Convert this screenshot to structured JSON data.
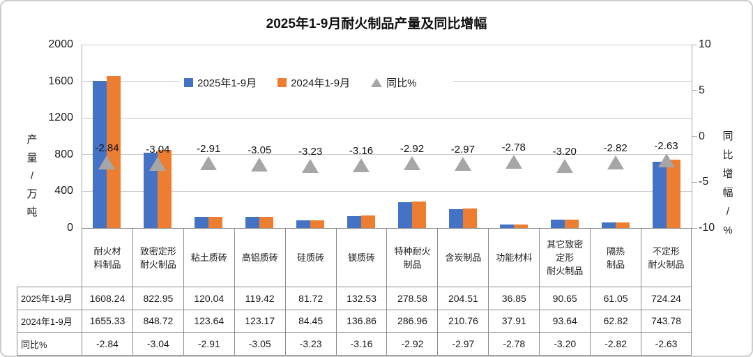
{
  "chart_data": {
    "type": "bar",
    "title": "2025年1-9月耐火制品产量及同比增幅",
    "categories": [
      "耐火材料制品",
      "致密定形耐火制品",
      "粘土质砖",
      "高铝质砖",
      "硅质砖",
      "镁质砖",
      "特种耐火制品",
      "含炭制品",
      "功能材料",
      "其它致密定形耐火制品",
      "隔热制品",
      "不定形耐火制品"
    ],
    "category_labels_wrapped": [
      "耐火材\n料制品",
      "致密定形\n耐火制品",
      "粘土质砖",
      "高铝质砖",
      "硅质砖",
      "镁质砖",
      "特种耐火\n制品",
      "含炭制品",
      "功能材料",
      "其它致密\n定形\n耐火制品",
      "隔热\n制品",
      "不定形\n耐火制品"
    ],
    "series": [
      {
        "name": "2025年1-9月",
        "color": "#4472C4",
        "values": [
          "1608.24",
          "822.95",
          "120.04",
          "119.42",
          "81.72",
          "132.53",
          "278.58",
          "204.51",
          "36.85",
          "90.65",
          "61.05",
          "724.24"
        ]
      },
      {
        "name": "2024年1-9月",
        "color": "#ED7D31",
        "values": [
          "1655.33",
          "848.72",
          "123.64",
          "123.17",
          "84.45",
          "136.86",
          "286.96",
          "210.76",
          "37.91",
          "93.64",
          "62.82",
          "743.78"
        ]
      }
    ],
    "marker_series": {
      "name": "同比%",
      "marker": "triangle",
      "color": "#A6A6A6",
      "axis": "right",
      "values": [
        "-2.84",
        "-3.04",
        "-2.91",
        "-3.05",
        "-3.23",
        "-3.16",
        "-2.92",
        "-2.97",
        "-2.78",
        "-3.20",
        "-2.82",
        "-2.63"
      ]
    },
    "left_axis": {
      "title": "产量/万吨",
      "min": 0,
      "max": 2000,
      "ticks": [
        "2000",
        "1600",
        "1200",
        "800",
        "400",
        "0"
      ]
    },
    "right_axis": {
      "title": "同比增幅/%",
      "min": -10,
      "max": 10,
      "ticks": [
        "10",
        "5",
        "0",
        "-5",
        "-10"
      ]
    },
    "legend": [
      "2025年1-9月",
      "2024年1-9月",
      "同比%"
    ],
    "legend_position": "top-inset",
    "grid": true
  },
  "table": {
    "row_headers": [
      "2025年1-9月",
      "2024年1-9月",
      "同比%"
    ]
  },
  "colors": {
    "bar_2025": "#4472C4",
    "bar_2024": "#ED7D31",
    "marker_gray": "#A6A6A6",
    "gridline": "#C9C9C9",
    "axis_line": "#A6A6A6",
    "table_border": "#8C8C8C",
    "text": "#1A1A1A"
  }
}
